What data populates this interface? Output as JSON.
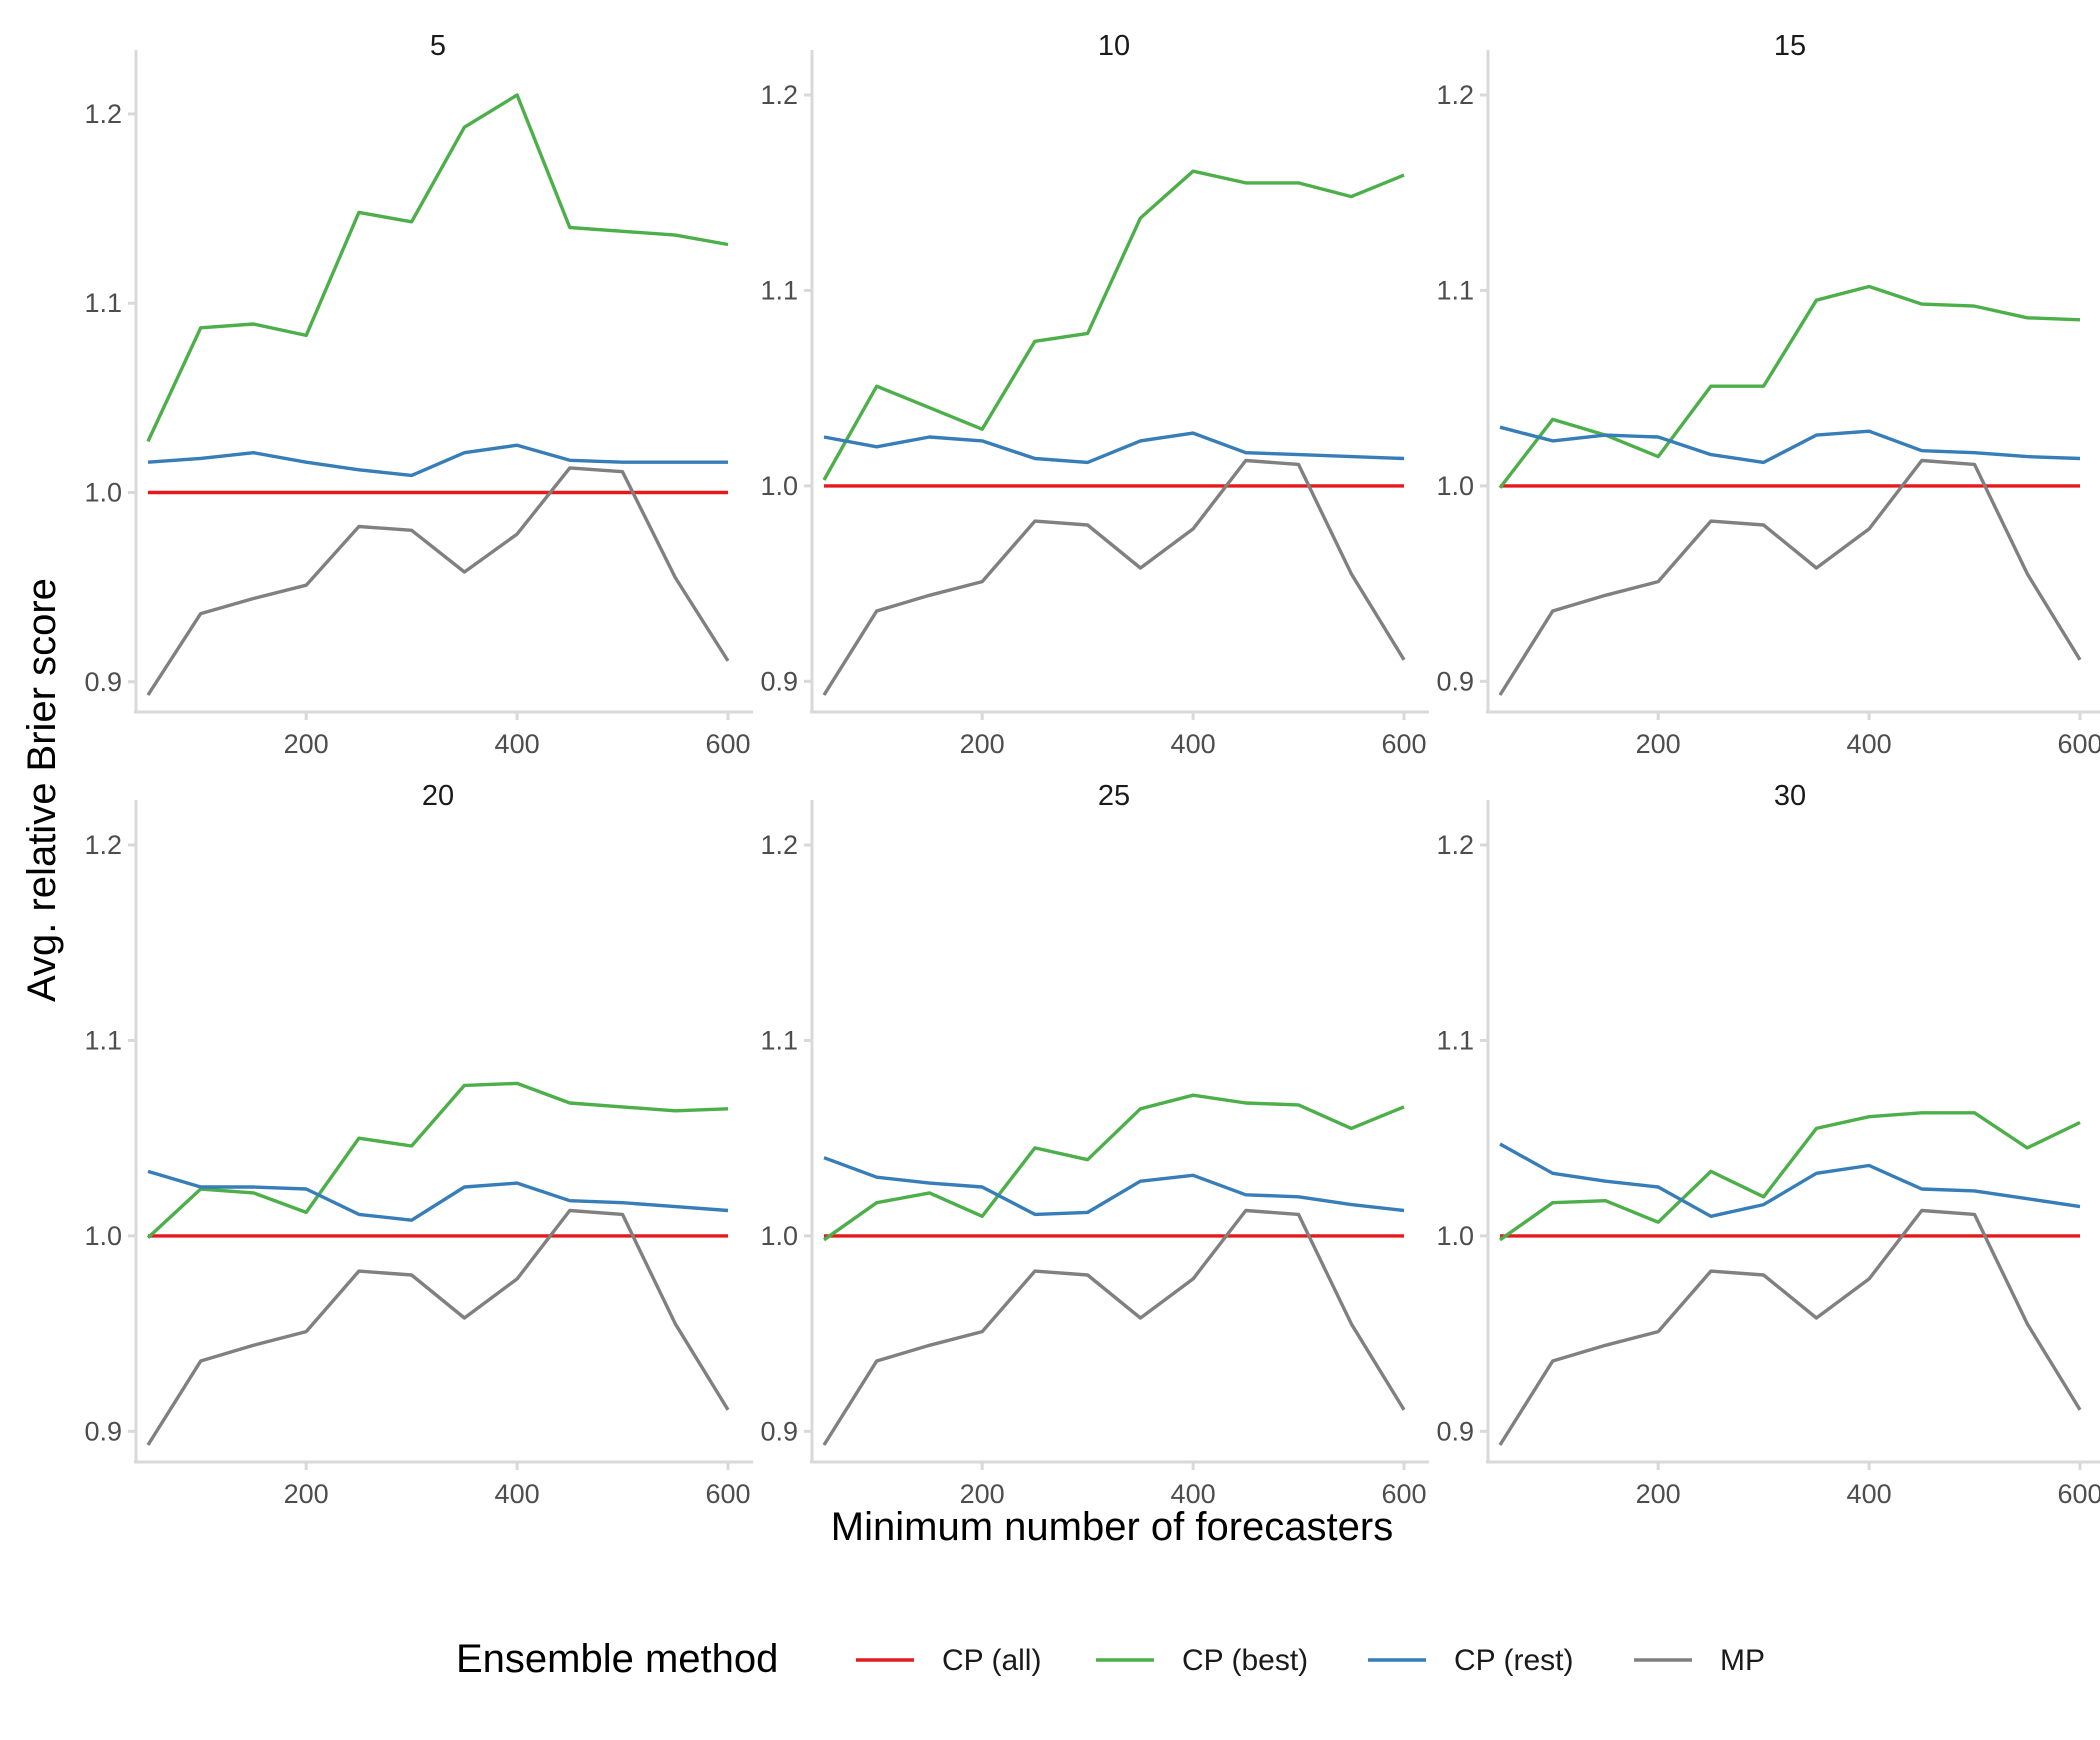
{
  "chart_data": {
    "type": "line",
    "xlabel": "Minimum number of forecasters",
    "ylabel": "Avg. relative Brier score",
    "legend": {
      "title": "Ensemble method",
      "position": "bottom",
      "entries": [
        "CP (all)",
        "CP (best)",
        "CP (rest)",
        "MP"
      ]
    },
    "colors": {
      "CP (all)": "#E41A1C",
      "CP (best)": "#4DAF4A",
      "CP (rest)": "#377EB8",
      "MP": "#808080"
    },
    "grid": false,
    "x": [
      50,
      100,
      150,
      200,
      250,
      300,
      350,
      400,
      450,
      500,
      550,
      600
    ],
    "x_ticks": [
      200,
      400,
      600
    ],
    "xlim": [
      50,
      600
    ],
    "y_ticks": [
      0.9,
      1.0,
      1.1,
      1.2
    ],
    "panels": [
      {
        "title": "5",
        "ylim": [
          0.893,
          1.21
        ],
        "series": [
          {
            "name": "CP (all)",
            "values": [
              1.0,
              1.0,
              1.0,
              1.0,
              1.0,
              1.0,
              1.0,
              1.0,
              1.0,
              1.0,
              1.0,
              1.0
            ]
          },
          {
            "name": "CP (best)",
            "values": [
              1.027,
              1.087,
              1.089,
              1.083,
              1.148,
              1.143,
              1.193,
              1.21,
              1.14,
              1.138,
              1.136,
              1.131
            ]
          },
          {
            "name": "CP (rest)",
            "values": [
              1.016,
              1.018,
              1.021,
              1.016,
              1.012,
              1.009,
              1.021,
              1.025,
              1.017,
              1.016,
              1.016,
              1.016
            ]
          },
          {
            "name": "MP",
            "values": [
              0.893,
              0.936,
              0.944,
              0.951,
              0.982,
              0.98,
              0.958,
              0.978,
              1.013,
              1.011,
              0.955,
              0.911
            ]
          }
        ]
      },
      {
        "title": "10",
        "ylim": [
          0.893,
          1.2
        ],
        "series": [
          {
            "name": "CP (all)",
            "values": [
              1.0,
              1.0,
              1.0,
              1.0,
              1.0,
              1.0,
              1.0,
              1.0,
              1.0,
              1.0,
              1.0,
              1.0
            ]
          },
          {
            "name": "CP (best)",
            "values": [
              1.003,
              1.051,
              1.04,
              1.029,
              1.074,
              1.078,
              1.137,
              1.161,
              1.155,
              1.155,
              1.148,
              1.159
            ]
          },
          {
            "name": "CP (rest)",
            "values": [
              1.025,
              1.02,
              1.025,
              1.023,
              1.014,
              1.012,
              1.023,
              1.027,
              1.017,
              1.016,
              1.015,
              1.014
            ]
          },
          {
            "name": "MP",
            "values": [
              0.893,
              0.936,
              0.944,
              0.951,
              0.982,
              0.98,
              0.958,
              0.978,
              1.013,
              1.011,
              0.955,
              0.911
            ]
          }
        ]
      },
      {
        "title": "15",
        "ylim": [
          0.893,
          1.2
        ],
        "series": [
          {
            "name": "CP (all)",
            "values": [
              1.0,
              1.0,
              1.0,
              1.0,
              1.0,
              1.0,
              1.0,
              1.0,
              1.0,
              1.0,
              1.0,
              1.0
            ]
          },
          {
            "name": "CP (best)",
            "values": [
              0.999,
              1.034,
              1.026,
              1.015,
              1.051,
              1.051,
              1.095,
              1.102,
              1.093,
              1.092,
              1.086,
              1.085
            ]
          },
          {
            "name": "CP (rest)",
            "values": [
              1.03,
              1.023,
              1.026,
              1.025,
              1.016,
              1.012,
              1.026,
              1.028,
              1.018,
              1.017,
              1.015,
              1.014
            ]
          },
          {
            "name": "MP",
            "values": [
              0.893,
              0.936,
              0.944,
              0.951,
              0.982,
              0.98,
              0.958,
              0.978,
              1.013,
              1.011,
              0.955,
              0.911
            ]
          }
        ]
      },
      {
        "title": "20",
        "ylim": [
          0.893,
          1.2
        ],
        "series": [
          {
            "name": "CP (all)",
            "values": [
              1.0,
              1.0,
              1.0,
              1.0,
              1.0,
              1.0,
              1.0,
              1.0,
              1.0,
              1.0,
              1.0,
              1.0
            ]
          },
          {
            "name": "CP (best)",
            "values": [
              0.999,
              1.024,
              1.022,
              1.012,
              1.05,
              1.046,
              1.077,
              1.078,
              1.068,
              1.066,
              1.064,
              1.065
            ]
          },
          {
            "name": "CP (rest)",
            "values": [
              1.033,
              1.025,
              1.025,
              1.024,
              1.011,
              1.008,
              1.025,
              1.027,
              1.018,
              1.017,
              1.015,
              1.013
            ]
          },
          {
            "name": "MP",
            "values": [
              0.893,
              0.936,
              0.944,
              0.951,
              0.982,
              0.98,
              0.958,
              0.978,
              1.013,
              1.011,
              0.955,
              0.911
            ]
          }
        ]
      },
      {
        "title": "25",
        "ylim": [
          0.893,
          1.2
        ],
        "series": [
          {
            "name": "CP (all)",
            "values": [
              1.0,
              1.0,
              1.0,
              1.0,
              1.0,
              1.0,
              1.0,
              1.0,
              1.0,
              1.0,
              1.0,
              1.0
            ]
          },
          {
            "name": "CP (best)",
            "values": [
              0.998,
              1.017,
              1.022,
              1.01,
              1.045,
              1.039,
              1.065,
              1.072,
              1.068,
              1.067,
              1.055,
              1.066
            ]
          },
          {
            "name": "CP (rest)",
            "values": [
              1.04,
              1.03,
              1.027,
              1.025,
              1.011,
              1.012,
              1.028,
              1.031,
              1.021,
              1.02,
              1.016,
              1.013
            ]
          },
          {
            "name": "MP",
            "values": [
              0.893,
              0.936,
              0.944,
              0.951,
              0.982,
              0.98,
              0.958,
              0.978,
              1.013,
              1.011,
              0.955,
              0.911
            ]
          }
        ]
      },
      {
        "title": "30",
        "ylim": [
          0.893,
          1.2
        ],
        "series": [
          {
            "name": "CP (all)",
            "values": [
              1.0,
              1.0,
              1.0,
              1.0,
              1.0,
              1.0,
              1.0,
              1.0,
              1.0,
              1.0,
              1.0,
              1.0
            ]
          },
          {
            "name": "CP (best)",
            "values": [
              0.998,
              1.017,
              1.018,
              1.007,
              1.033,
              1.02,
              1.055,
              1.061,
              1.063,
              1.063,
              1.045,
              1.058
            ]
          },
          {
            "name": "CP (rest)",
            "values": [
              1.047,
              1.032,
              1.028,
              1.025,
              1.01,
              1.016,
              1.032,
              1.036,
              1.024,
              1.023,
              1.019,
              1.015
            ]
          },
          {
            "name": "MP",
            "values": [
              0.893,
              0.936,
              0.944,
              0.951,
              0.982,
              0.98,
              0.958,
              0.978,
              1.013,
              1.011,
              0.955,
              0.911
            ]
          }
        ]
      }
    ]
  }
}
